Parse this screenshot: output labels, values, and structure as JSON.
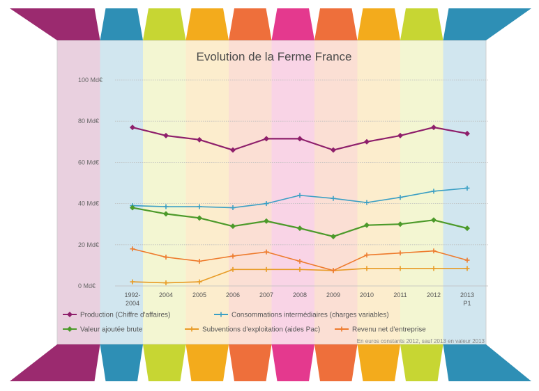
{
  "band_colors": [
    "#9b2a6f",
    "#2e8fb5",
    "#c7d633",
    "#f3ab1c",
    "#ee6f3b",
    "#e4398e",
    "#ee6f3b",
    "#f3ab1c",
    "#c7d633",
    "#2e8fb5"
  ],
  "chart_data": {
    "type": "line",
    "title": "Evolution de la Ferme France",
    "categories": [
      "1992-2004",
      "2004",
      "2005",
      "2006",
      "2007",
      "2008",
      "2009",
      "2010",
      "2011",
      "2012",
      "2013 P1"
    ],
    "x_tick_lines": [
      [
        "1992-",
        "2004"
      ],
      [
        "2004"
      ],
      [
        "2005"
      ],
      [
        "2006"
      ],
      [
        "2007"
      ],
      [
        "2008"
      ],
      [
        "2009"
      ],
      [
        "2010"
      ],
      [
        "2011"
      ],
      [
        "2012"
      ],
      [
        "2013",
        "P1"
      ]
    ],
    "y_ticks": [
      {
        "value": 0,
        "label": "0 Md€"
      },
      {
        "value": 20,
        "label": "20 Md€"
      },
      {
        "value": 40,
        "label": "40 Md€"
      },
      {
        "value": 60,
        "label": "60 Md€"
      },
      {
        "value": 80,
        "label": "80 Md€"
      },
      {
        "value": 100,
        "label": "100 Md€"
      }
    ],
    "ylim": [
      0,
      100
    ],
    "grid": true,
    "legend_position": "bottom",
    "series": [
      {
        "name": "Production (Chiffre d'affaires)",
        "color": "#8e1f6b",
        "marker": "diamond",
        "values": [
          77,
          73,
          71,
          66,
          71.5,
          71.5,
          66,
          70,
          73,
          77,
          74
        ]
      },
      {
        "name": "Consommations intermédiaires (charges variables)",
        "color": "#3a9fc4",
        "marker": "plus",
        "values": [
          39,
          38.5,
          38.5,
          38,
          40,
          44,
          42.5,
          40.5,
          43,
          46,
          47.5
        ]
      },
      {
        "name": "Valeur ajoutée brute",
        "color": "#4c9a2a",
        "marker": "diamond",
        "values": [
          38,
          35,
          33,
          29,
          31.5,
          28,
          24,
          29.5,
          30,
          32,
          28
        ]
      },
      {
        "name": "Subventions d'exploitation (aides Pac)",
        "color": "#e89b25",
        "marker": "plus",
        "values": [
          2,
          1.5,
          2,
          8,
          8,
          8,
          7.5,
          8.5,
          8.5,
          8.5,
          8.5
        ]
      },
      {
        "name": "Revenu net d'entreprise",
        "color": "#ee7b2d",
        "marker": "plus",
        "values": [
          18,
          14,
          12,
          14.5,
          16.5,
          12,
          7.5,
          15,
          16,
          17,
          12.5
        ]
      }
    ],
    "legend_rows": [
      [
        0,
        1
      ],
      [
        2,
        3,
        4
      ]
    ],
    "source": "En euros constants 2012, sauf 2013 en valeur 2013"
  }
}
